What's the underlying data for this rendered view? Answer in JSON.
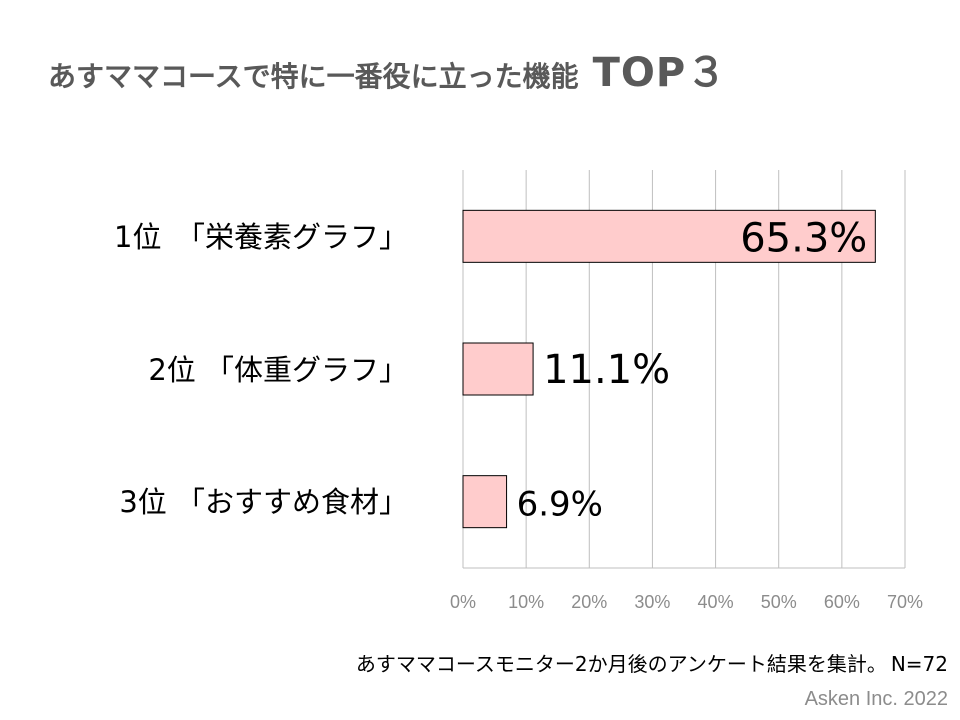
{
  "title": {
    "main": "あすママコースで特に一番役に立った機能",
    "emphasis": "TOP３"
  },
  "chart_data": {
    "type": "bar",
    "orientation": "horizontal",
    "categories": [
      "1位　「栄養素グラフ」",
      "2位 「体重グラフ」",
      "3位 「おすすめ食材」"
    ],
    "values": [
      65.3,
      11.1,
      6.9
    ],
    "value_labels": [
      "65.3%",
      "11.1%",
      "6.9%"
    ],
    "xlim": [
      0,
      70
    ],
    "x_ticks": [
      "0%",
      "10%",
      "20%",
      "30%",
      "40%",
      "50%",
      "60%",
      "70%"
    ],
    "grid": true,
    "bar_color": "#ffcccc",
    "bar_edge_color": "#000000",
    "grid_color": "#bfbfbf",
    "tick_color": "#8c8c8c"
  },
  "footnote": {
    "text": "あすママコースモニター2か月後のアンケート結果を集計。",
    "sample": "N=72"
  },
  "credit": "Asken Inc. 2022"
}
